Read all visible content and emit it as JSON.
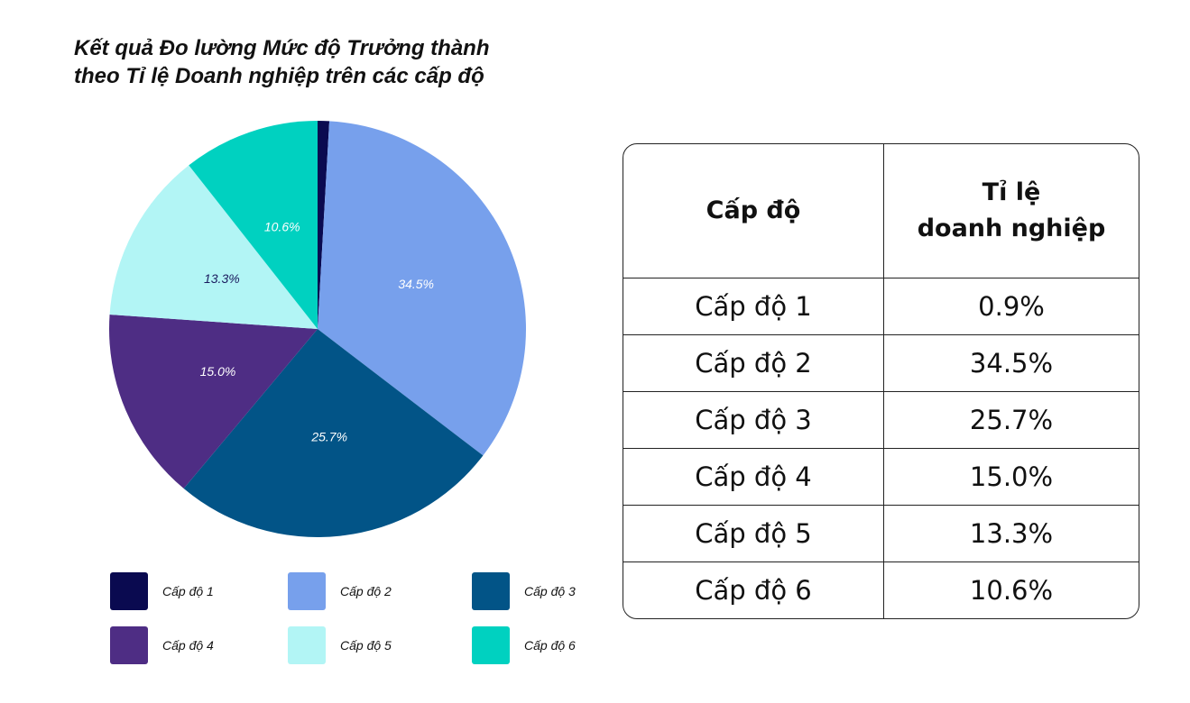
{
  "title_line1": "Kết quả Đo lường Mức độ Trưởng thành",
  "title_line2": "theo Tỉ lệ Doanh nghiệp trên các cấp độ",
  "chart_data": {
    "type": "pie",
    "title": "Kết quả Đo lường Mức độ Trưởng thành theo Tỉ lệ Doanh nghiệp trên các cấp độ",
    "categories": [
      "Cấp độ 1",
      "Cấp độ 2",
      "Cấp độ 3",
      "Cấp độ 4",
      "Cấp độ 5",
      "Cấp độ 6"
    ],
    "values": [
      0.9,
      34.5,
      25.7,
      15.0,
      13.3,
      10.6
    ],
    "data_labels": [
      "",
      "34.5%",
      "25.7%",
      "15.0%",
      "13.3%",
      "10.6%"
    ],
    "colors": [
      "#0a0a50",
      "#77a0ec",
      "#025487",
      "#4e2d84",
      "#b2f5f5",
      "#00d1c0"
    ],
    "label_colors": [
      "#ffffff",
      "#ffffff",
      "#ffffff",
      "#ffffff",
      "#1a1a5e",
      "#ffffff"
    ],
    "start": "top",
    "direction": "clockwise",
    "legend_position": "bottom"
  },
  "table": {
    "headers": [
      "Cấp độ",
      "Tỉ lệ",
      "doanh nghiệp"
    ],
    "rows": [
      [
        "Cấp độ 1",
        "0.9%"
      ],
      [
        "Cấp độ 2",
        "34.5%"
      ],
      [
        "Cấp độ 3",
        "25.7%"
      ],
      [
        "Cấp độ 4",
        "15.0%"
      ],
      [
        "Cấp độ 5",
        "13.3%"
      ],
      [
        "Cấp độ 6",
        "10.6%"
      ]
    ]
  }
}
